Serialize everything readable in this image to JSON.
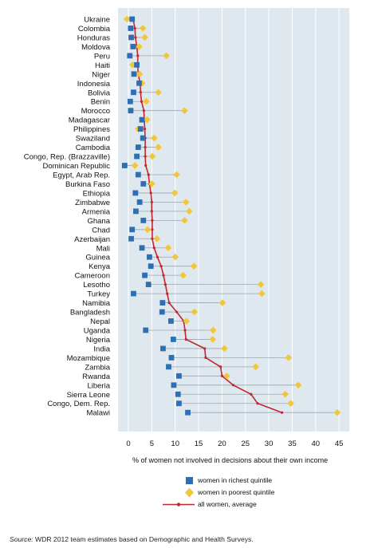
{
  "chart_data": {
    "type": "scatter",
    "xlabel": "% of women not involved in decisions about their own income",
    "xlim": [
      -2,
      46
    ],
    "xticks": [
      0,
      5,
      10,
      15,
      20,
      25,
      30,
      35,
      40,
      45
    ],
    "grid": true,
    "categories": [
      "Ukraine",
      "Colombia",
      "Honduras",
      "Moldova",
      "Peru",
      "Haiti",
      "Niger",
      "Indonesia",
      "Bolivia",
      "Benin",
      "Morocco",
      "Madagascar",
      "Philippines",
      "Swaziland",
      "Cambodia",
      "Congo, Rep. (Brazzaville)",
      "Dominican Republic",
      "Egypt, Arab Rep.",
      "Burkina Faso",
      "Ethiopia",
      "Zimbabwe",
      "Armenia",
      "Ghana",
      "Chad",
      "Azerbaijan",
      "Mali",
      "Guinea",
      "Kenya",
      "Cameroon",
      "Lesotho",
      "Turkey",
      "Namibia",
      "Bangladesh",
      "Nepal",
      "Uganda",
      "Nigeria",
      "India",
      "Mozambique",
      "Zambia",
      "Rwanda",
      "Liberia",
      "Sierra Leone",
      "Congo, Dem. Rep.",
      "Malawi"
    ],
    "series": [
      {
        "name": "women in richest quintile",
        "marker": "square",
        "color": "#2e6fb3",
        "values": [
          0.8,
          0.5,
          0.6,
          1,
          0.3,
          1.8,
          1.2,
          2.3,
          1.1,
          0.4,
          0.5,
          2.9,
          2.6,
          3.1,
          2.1,
          1.8,
          -0.8,
          2.1,
          3.2,
          1.5,
          2.4,
          1.6,
          3.2,
          0.8,
          0.6,
          2.9,
          4.5,
          4.8,
          3.5,
          4.3,
          1.1,
          7.3,
          7.2,
          9.1,
          3.7,
          9.6,
          7.4,
          9.2,
          8.6,
          10.8,
          9.7,
          10.6,
          10.8,
          12.7
        ]
      },
      {
        "name": "women in poorest quintile",
        "marker": "diamond",
        "color": "#f2c737",
        "values": [
          -0.3,
          3.1,
          3.5,
          2.3,
          8.1,
          0.9,
          2.4,
          2.9,
          6.4,
          3.8,
          12,
          4,
          2.1,
          5.5,
          6.4,
          5.1,
          1.4,
          10.3,
          5,
          9.9,
          12.3,
          13,
          12,
          4.1,
          6.1,
          8.5,
          10,
          14,
          11.7,
          28.3,
          28.5,
          20.1,
          14.1,
          12.4,
          18.1,
          18,
          20.5,
          34.2,
          27.2,
          21,
          36.3,
          33.5,
          34.7,
          44.6
        ]
      },
      {
        "name": "all women, average",
        "marker": "line",
        "color": "#c0282d",
        "values": [
          1,
          1.4,
          1.5,
          1.8,
          2,
          2,
          2.1,
          2.5,
          2.6,
          2.8,
          3.3,
          3.4,
          3.5,
          3.6,
          3.6,
          3.6,
          3.7,
          4.3,
          4.5,
          4.8,
          5,
          5,
          5.1,
          5.1,
          5.1,
          5.5,
          6.2,
          7,
          7.5,
          7.9,
          8.3,
          8.7,
          10.3,
          11.8,
          12.1,
          12.3,
          16.3,
          16.5,
          19.7,
          20,
          22.4,
          26.2,
          27.6,
          32.8
        ]
      }
    ]
  },
  "footer": {
    "source_label": "Source:",
    "source_text": " WDR 2012 team estimates based on Demographic and Health Surveys."
  }
}
